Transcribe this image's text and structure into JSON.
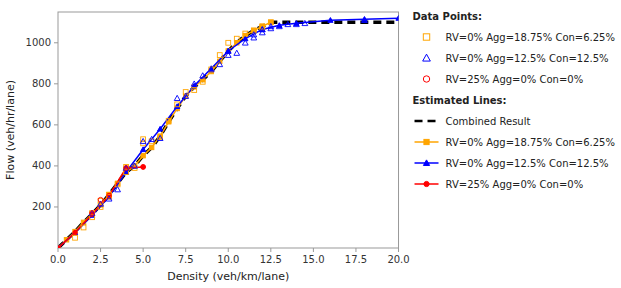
{
  "chart_data": {
    "type": "line",
    "xlabel": "Density (veh/km/lane)",
    "ylabel": "Flow (veh/hr/lane)",
    "xlim": [
      0.0,
      20.0
    ],
    "ylim": [
      0,
      1150
    ],
    "xticks": [
      {
        "value": 0.0,
        "label": "0.0"
      },
      2.5,
      {
        "value": 5.0,
        "label": "5.0"
      },
      7.5,
      {
        "value": 10.0,
        "label": "10.0"
      },
      12.5,
      {
        "value": 15.0,
        "label": "15.0"
      },
      17.5,
      {
        "value": 20.0,
        "label": "20.0"
      }
    ],
    "yticks": [
      200,
      400,
      600,
      800,
      1000
    ],
    "grid": false,
    "legend": "right",
    "series": [
      {
        "name": "RV=0% Agg=18.75% Con=6.25%",
        "legend_group": "Data Points:",
        "type": "scatter",
        "marker": "square",
        "color": "#FFA500",
        "x": [
          1.0,
          1.5,
          2.0,
          2.0,
          2.5,
          2.5,
          3.0,
          3.0,
          3.5,
          4.0,
          4.0,
          4.5,
          5.0,
          5.0,
          5.5,
          6.0,
          6.5,
          7.0,
          7.5,
          8.0,
          8.5,
          9.0,
          9.5,
          10.0,
          10.5,
          11.0,
          11.5,
          12.0,
          12.0,
          12.5
        ],
        "values": [
          50,
          100,
          150,
          170,
          200,
          230,
          250,
          260,
          310,
          370,
          395,
          390,
          510,
          530,
          520,
          540,
          620,
          700,
          760,
          770,
          810,
          870,
          940,
          1000,
          1020,
          1045,
          1060,
          1075,
          1080,
          1100
        ]
      },
      {
        "name": "RV=0% Agg=12.5% Con=12.5%",
        "legend_group": "Data Points:",
        "type": "scatter",
        "marker": "triangle",
        "color": "#0000FF",
        "x": [
          2.0,
          2.5,
          3.0,
          3.5,
          4.0,
          4.5,
          5.0,
          5.5,
          6.0,
          7.0,
          7.5,
          8.0,
          8.5,
          9.0,
          9.5,
          10.0,
          10.0,
          10.5,
          11.0,
          11.5,
          11.5,
          12.0,
          12.0,
          12.5,
          12.5,
          13.0,
          13.5,
          14.0,
          14.5,
          18.0
        ],
        "values": [
          170,
          215,
          240,
          285,
          390,
          400,
          520,
          530,
          535,
          730,
          740,
          800,
          840,
          870,
          895,
          940,
          960,
          950,
          1000,
          1025,
          1040,
          1050,
          1065,
          1070,
          1080,
          1080,
          1090,
          1090,
          1095,
          1110
        ]
      },
      {
        "name": "RV=25% Agg=0% Con=0%",
        "legend_group": "Data Points:",
        "type": "scatter",
        "marker": "circle",
        "color": "#FF0000",
        "x": [
          2.0,
          2.5,
          3.0,
          4.0,
          5.0
        ],
        "values": [
          170,
          235,
          255,
          390,
          395
        ]
      },
      {
        "name": "Combined Result",
        "legend_group": "Estimated Lines:",
        "type": "line",
        "line_style": "dashed",
        "marker": "none",
        "color": "#000000",
        "x": [
          0.0,
          0.5,
          1.0,
          1.5,
          2.0,
          2.5,
          3.0,
          3.5,
          4.0,
          4.5,
          5.0,
          5.5,
          6.0,
          6.5,
          7.0,
          7.5,
          8.0,
          8.5,
          9.0,
          9.5,
          10.0,
          10.5,
          11.0,
          11.5,
          12.0,
          12.5,
          13.0,
          14.0,
          15.0,
          17.0,
          20.0
        ],
        "values": [
          0,
          40,
          80,
          125,
          165,
          210,
          260,
          315,
          370,
          400,
          450,
          490,
          545,
          615,
          680,
          740,
          785,
          820,
          860,
          910,
          960,
          1000,
          1035,
          1060,
          1080,
          1100,
          1100,
          1100,
          1100,
          1100,
          1100
        ]
      },
      {
        "name": "RV=0% Agg=18.75% Con=6.25%",
        "legend_group": "Estimated Lines:",
        "type": "line",
        "line_style": "solid",
        "marker": "square",
        "color": "#FFA500",
        "x": [
          0.0,
          0.5,
          1.0,
          1.5,
          2.0,
          2.5,
          3.0,
          3.5,
          4.0,
          4.5,
          5.0,
          5.5,
          6.0,
          6.5,
          7.0,
          7.5,
          8.0,
          8.5,
          9.0,
          9.5,
          10.0,
          10.5,
          11.0,
          11.5,
          12.0,
          12.5
        ],
        "values": [
          0,
          40,
          80,
          125,
          165,
          210,
          260,
          315,
          370,
          400,
          450,
          490,
          545,
          615,
          680,
          740,
          785,
          820,
          860,
          910,
          960,
          1000,
          1035,
          1060,
          1080,
          1100
        ]
      },
      {
        "name": "RV=0% Agg=12.5% Con=12.5%",
        "legend_group": "Estimated Lines:",
        "type": "line",
        "line_style": "solid",
        "marker": "triangle",
        "color": "#0000FF",
        "x": [
          0.0,
          1.0,
          2.0,
          3.0,
          4.0,
          5.0,
          6.0,
          7.0,
          8.0,
          9.0,
          10.0,
          11.0,
          12.0,
          13.0,
          14.0,
          16.0,
          18.0,
          20.0
        ],
        "values": [
          0,
          75,
          160,
          250,
          370,
          480,
          580,
          690,
          790,
          875,
          960,
          1020,
          1065,
          1085,
          1095,
          1110,
          1115,
          1120
        ]
      },
      {
        "name": "RV=25% Agg=0% Con=0%",
        "legend_group": "Estimated Lines:",
        "type": "line",
        "line_style": "solid",
        "marker": "circle",
        "color": "#FF0000",
        "x": [
          0.0,
          1.0,
          2.0,
          3.0,
          4.0,
          5.0
        ],
        "values": [
          0,
          75,
          165,
          255,
          390,
          395
        ]
      }
    ]
  }
}
